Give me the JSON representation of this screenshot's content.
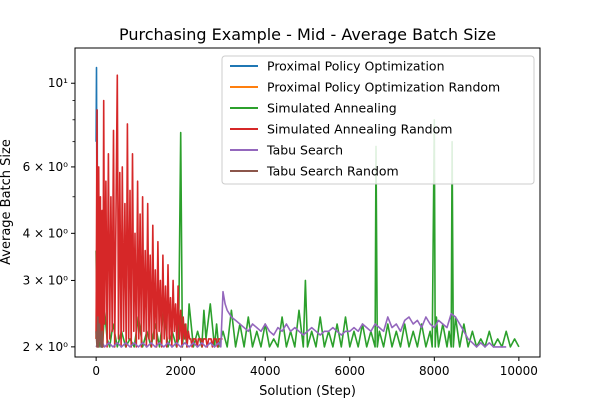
{
  "chart_data": {
    "type": "line",
    "title": "Purchasing Example - Mid - Average Batch Size",
    "xlabel": "Solution (Step)",
    "ylabel": "Average Batch Size",
    "xlim": [
      -500,
      10500
    ],
    "ylim": [
      1.88,
      12.4
    ],
    "yscale": "log",
    "grid": false,
    "legend_position": "upper right",
    "x_ticks": [
      {
        "value": 0,
        "label": "0"
      },
      {
        "value": 2000,
        "label": "2000"
      },
      {
        "value": 4000,
        "label": "4000"
      },
      {
        "value": 6000,
        "label": "6000"
      },
      {
        "value": 8000,
        "label": "8000"
      },
      {
        "value": 10000,
        "label": "10000"
      }
    ],
    "y_ticks": [
      {
        "value": 2,
        "label": "2 × 10⁰"
      },
      {
        "value": 3,
        "label": "3 × 10⁰"
      },
      {
        "value": 4,
        "label": "4 × 10⁰"
      },
      {
        "value": 6,
        "label": "6 × 10⁰"
      },
      {
        "value": 10,
        "label": "10¹"
      }
    ],
    "y_minor_ticks": [
      5,
      7,
      8,
      9
    ],
    "series": [
      {
        "name": "Proximal Policy Optimization",
        "color": "#1f77b4",
        "x": [
          0,
          8,
          16,
          24,
          32,
          40,
          48,
          56,
          64,
          72,
          80,
          88,
          96,
          104,
          112,
          120,
          130,
          140,
          150
        ],
        "y": [
          7.0,
          11.0,
          5.5,
          8.5,
          3.4,
          2.1,
          2.6,
          4.6,
          2.2,
          3.0,
          2.05,
          2.5,
          2.1,
          2.3,
          2.0,
          2.1,
          2.0,
          2.0,
          2.0
        ]
      },
      {
        "name": "Proximal Policy Optimization Random",
        "color": "#ff7f0e",
        "x": [
          0,
          10,
          20,
          30,
          40,
          50,
          60,
          70,
          80,
          90,
          100,
          110,
          120,
          130,
          140,
          150
        ],
        "y": [
          2.1,
          3.4,
          2.5,
          2.2,
          2.7,
          2.2,
          3.2,
          2.3,
          2.1,
          2.6,
          2.2,
          2.1,
          2.3,
          2.1,
          2.2,
          2.1
        ]
      },
      {
        "name": "Simulated Annealing",
        "color": "#2ca02c",
        "x": [
          0,
          20,
          40,
          70,
          100,
          150,
          200,
          260,
          320,
          400,
          500,
          600,
          700,
          800,
          900,
          1000,
          1100,
          1200,
          1300,
          1400,
          1500,
          1600,
          1700,
          1800,
          1900,
          1950,
          2000,
          2040,
          2080,
          2150,
          2200,
          2300,
          2400,
          2500,
          2550,
          2600,
          2700,
          2800,
          2850,
          2900,
          3000,
          3100,
          3200,
          3300,
          3400,
          3500,
          3600,
          3700,
          3800,
          3900,
          4000,
          4100,
          4200,
          4300,
          4400,
          4500,
          4600,
          4700,
          4800,
          4900,
          4950,
          5000,
          5100,
          5200,
          5300,
          5400,
          5500,
          5600,
          5700,
          5800,
          5900,
          6000,
          6100,
          6200,
          6300,
          6400,
          6500,
          6600,
          6620,
          6650,
          6700,
          6800,
          6900,
          7000,
          7100,
          7200,
          7300,
          7400,
          7500,
          7600,
          7700,
          7800,
          7900,
          7950,
          8000,
          8020,
          8050,
          8100,
          8200,
          8300,
          8350,
          8400,
          8420,
          8450,
          8500,
          8600,
          8700,
          8800,
          8900,
          9000,
          9100,
          9200,
          9300,
          9400,
          9500,
          9600,
          9700,
          9800,
          9900,
          10000
        ],
        "y": [
          3.6,
          2.1,
          2.4,
          2.0,
          2.3,
          2.0,
          2.5,
          2.1,
          2.0,
          2.3,
          2.0,
          2.2,
          2.0,
          2.1,
          2.0,
          2.4,
          2.0,
          2.2,
          2.0,
          2.3,
          2.0,
          2.5,
          2.0,
          2.2,
          2.0,
          2.1,
          7.4,
          2.0,
          2.3,
          2.0,
          2.6,
          2.0,
          2.2,
          2.0,
          2.5,
          2.1,
          2.6,
          2.0,
          2.3,
          2.0,
          2.2,
          2.0,
          2.5,
          2.0,
          2.3,
          2.0,
          2.4,
          2.0,
          2.2,
          2.0,
          2.3,
          2.0,
          2.1,
          2.0,
          2.4,
          2.0,
          2.2,
          2.0,
          2.5,
          2.0,
          3.0,
          2.0,
          2.2,
          2.0,
          2.4,
          2.0,
          2.2,
          2.0,
          2.3,
          2.0,
          2.4,
          2.0,
          2.2,
          2.0,
          2.3,
          2.0,
          2.2,
          2.0,
          6.8,
          2.0,
          2.2,
          2.0,
          2.3,
          2.0,
          2.2,
          2.0,
          2.3,
          2.0,
          2.2,
          2.0,
          2.3,
          2.0,
          2.2,
          2.0,
          8.0,
          2.0,
          2.4,
          2.0,
          2.3,
          2.0,
          2.2,
          2.0,
          7.0,
          2.0,
          2.4,
          2.0,
          2.3,
          2.0,
          2.2,
          2.0,
          2.1,
          2.0,
          2.2,
          2.0,
          2.1,
          2.0,
          2.2,
          2.0,
          2.1,
          2.0
        ]
      },
      {
        "name": "Simulated Annealing Random",
        "color": "#d62728",
        "x": [
          0,
          20,
          40,
          60,
          80,
          100,
          120,
          140,
          160,
          180,
          200,
          230,
          260,
          290,
          320,
          350,
          380,
          410,
          440,
          470,
          500,
          530,
          560,
          590,
          620,
          650,
          680,
          710,
          740,
          770,
          800,
          830,
          860,
          890,
          920,
          950,
          980,
          1010,
          1040,
          1070,
          1100,
          1130,
          1160,
          1190,
          1220,
          1250,
          1280,
          1310,
          1340,
          1370,
          1400,
          1430,
          1460,
          1490,
          1520,
          1550,
          1580,
          1610,
          1640,
          1670,
          1700,
          1730,
          1760,
          1790,
          1820,
          1850,
          1880,
          1910,
          1940,
          1970,
          2000,
          2030,
          2060,
          2090,
          2120,
          2150,
          2180,
          2210,
          2240,
          2270,
          2300,
          2330,
          2360,
          2390,
          2420,
          2450,
          2480,
          2510,
          2540,
          2570,
          2600,
          2630,
          2660,
          2690,
          2720,
          2750,
          2780,
          2810,
          2840,
          2870,
          2900,
          2930,
          2960,
          2990
        ],
        "y": [
          2.1,
          8.5,
          2.0,
          6.0,
          2.2,
          5.0,
          2.1,
          4.6,
          2.0,
          9.0,
          2.3,
          5.5,
          2.0,
          6.5,
          2.1,
          5.0,
          2.2,
          7.5,
          2.0,
          4.5,
          10.5,
          2.1,
          5.8,
          2.0,
          6.0,
          2.2,
          4.8,
          2.0,
          7.8,
          2.1,
          5.2,
          2.0,
          6.5,
          2.2,
          4.0,
          2.0,
          5.5,
          2.1,
          4.5,
          2.0,
          5.0,
          2.2,
          3.6,
          2.0,
          4.8,
          2.1,
          3.5,
          2.0,
          4.2,
          2.1,
          3.2,
          2.0,
          3.8,
          2.2,
          3.0,
          2.0,
          3.5,
          2.1,
          2.9,
          2.0,
          3.3,
          2.1,
          2.7,
          2.0,
          3.0,
          2.2,
          2.6,
          2.0,
          2.9,
          2.1,
          2.5,
          2.0,
          2.4,
          2.1,
          2.3,
          2.0,
          2.2,
          2.1,
          2.1,
          2.0,
          2.1,
          2.1,
          2.1,
          2.0,
          2.1,
          2.1,
          2.1,
          2.0,
          2.1,
          2.1,
          2.1,
          2.0,
          2.1,
          2.1,
          2.1,
          2.0,
          2.1,
          2.1,
          2.1,
          2.0,
          2.1,
          2.1,
          2.1,
          2.1
        ]
      },
      {
        "name": "Tabu Search",
        "color": "#9467bd",
        "x": [
          0,
          100,
          200,
          300,
          400,
          500,
          600,
          700,
          800,
          900,
          1000,
          1100,
          1200,
          1300,
          1400,
          1500,
          1600,
          1700,
          1800,
          1900,
          2000,
          2100,
          2200,
          2300,
          2400,
          2500,
          2600,
          2700,
          2800,
          2900,
          2950,
          3000,
          3050,
          3100,
          3200,
          3300,
          3400,
          3500,
          3600,
          3700,
          3800,
          3900,
          4000,
          4100,
          4200,
          4300,
          4400,
          4500,
          4600,
          4700,
          4800,
          4900,
          5000,
          5100,
          5200,
          5300,
          5400,
          5500,
          5600,
          5700,
          5800,
          5900,
          6000,
          6100,
          6200,
          6300,
          6400,
          6500,
          6600,
          6700,
          6800,
          6900,
          7000,
          7100,
          7200,
          7300,
          7400,
          7500,
          7600,
          7700,
          7800,
          7900,
          8000,
          8100,
          8200,
          8300,
          8400,
          8500,
          8600,
          8700,
          8800,
          8900,
          9000,
          9100,
          9200,
          9300,
          9400,
          9500,
          9600,
          9700
        ],
        "y": [
          2.0,
          2.1,
          2.0,
          2.05,
          2.0,
          2.05,
          2.0,
          2.05,
          2.0,
          2.05,
          2.0,
          2.05,
          2.0,
          2.05,
          2.0,
          2.05,
          2.0,
          2.05,
          2.0,
          2.05,
          2.0,
          2.05,
          2.0,
          2.05,
          2.0,
          2.05,
          2.0,
          2.05,
          2.0,
          2.05,
          2.0,
          2.8,
          2.6,
          2.5,
          2.4,
          2.35,
          2.3,
          2.25,
          2.2,
          2.3,
          2.25,
          2.2,
          2.3,
          2.2,
          2.15,
          2.25,
          2.2,
          2.3,
          2.2,
          2.25,
          2.2,
          2.15,
          2.2,
          2.25,
          2.2,
          2.15,
          2.2,
          2.2,
          2.25,
          2.2,
          2.15,
          2.2,
          2.2,
          2.25,
          2.2,
          2.3,
          2.25,
          2.2,
          2.3,
          2.25,
          2.2,
          2.4,
          2.25,
          2.3,
          2.2,
          2.35,
          2.4,
          2.3,
          2.35,
          2.25,
          2.4,
          2.3,
          2.25,
          2.35,
          2.3,
          2.25,
          2.45,
          2.4,
          2.3,
          2.2,
          2.1,
          2.05,
          2.0,
          2.05,
          2.0,
          2.05,
          2.0,
          2.0,
          2.0,
          2.0
        ]
      },
      {
        "name": "Tabu Search Random",
        "color": "#8c564b",
        "x": [
          0,
          20,
          40,
          60,
          80,
          100,
          120,
          140,
          160
        ],
        "y": [
          2.2,
          2.0,
          2.4,
          2.0,
          2.3,
          2.1,
          2.0,
          2.2,
          2.0
        ]
      }
    ]
  }
}
